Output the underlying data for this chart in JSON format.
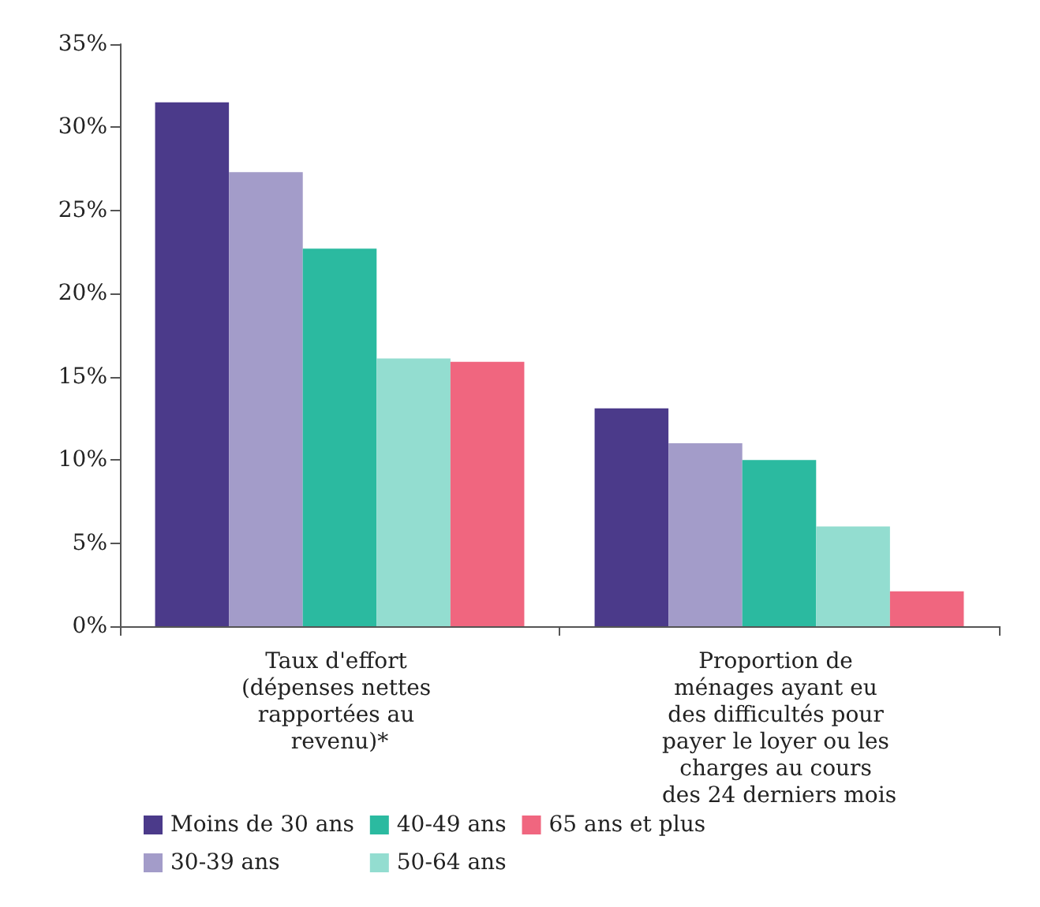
{
  "chart_data": {
    "type": "bar",
    "categories": [
      "Taux d'effort (dépenses nettes rapportées au revenu)*",
      "Proportion de ménages ayant eu des difficultés pour payer le loyer ou les charges au cours des 24 derniers mois"
    ],
    "series": [
      {
        "name": "Moins de 30 ans",
        "color": "#4b3a8a",
        "values": [
          31.5,
          13.1
        ]
      },
      {
        "name": "30-39 ans",
        "color": "#a39cc9",
        "values": [
          27.3,
          11.0
        ]
      },
      {
        "name": "40-49 ans",
        "color": "#2bbaa0",
        "values": [
          22.7,
          10.0
        ]
      },
      {
        "name": "50-64 ans",
        "color": "#93ddd0",
        "values": [
          16.1,
          6.0
        ]
      },
      {
        "name": "65 ans et plus",
        "color": "#f0667f",
        "values": [
          15.9,
          2.1
        ]
      }
    ],
    "ylim": [
      0,
      35
    ],
    "yticks": [
      {
        "value": 0,
        "label": "0%"
      },
      {
        "value": 5,
        "label": "5%"
      },
      {
        "value": 10,
        "label": "10%"
      },
      {
        "value": 15,
        "label": "15%"
      },
      {
        "value": 20,
        "label": "20%"
      },
      {
        "value": 25,
        "label": "25%"
      },
      {
        "value": 30,
        "label": "30%"
      },
      {
        "value": 35,
        "label": "35%"
      }
    ],
    "grid": false,
    "legend": "bottom"
  }
}
